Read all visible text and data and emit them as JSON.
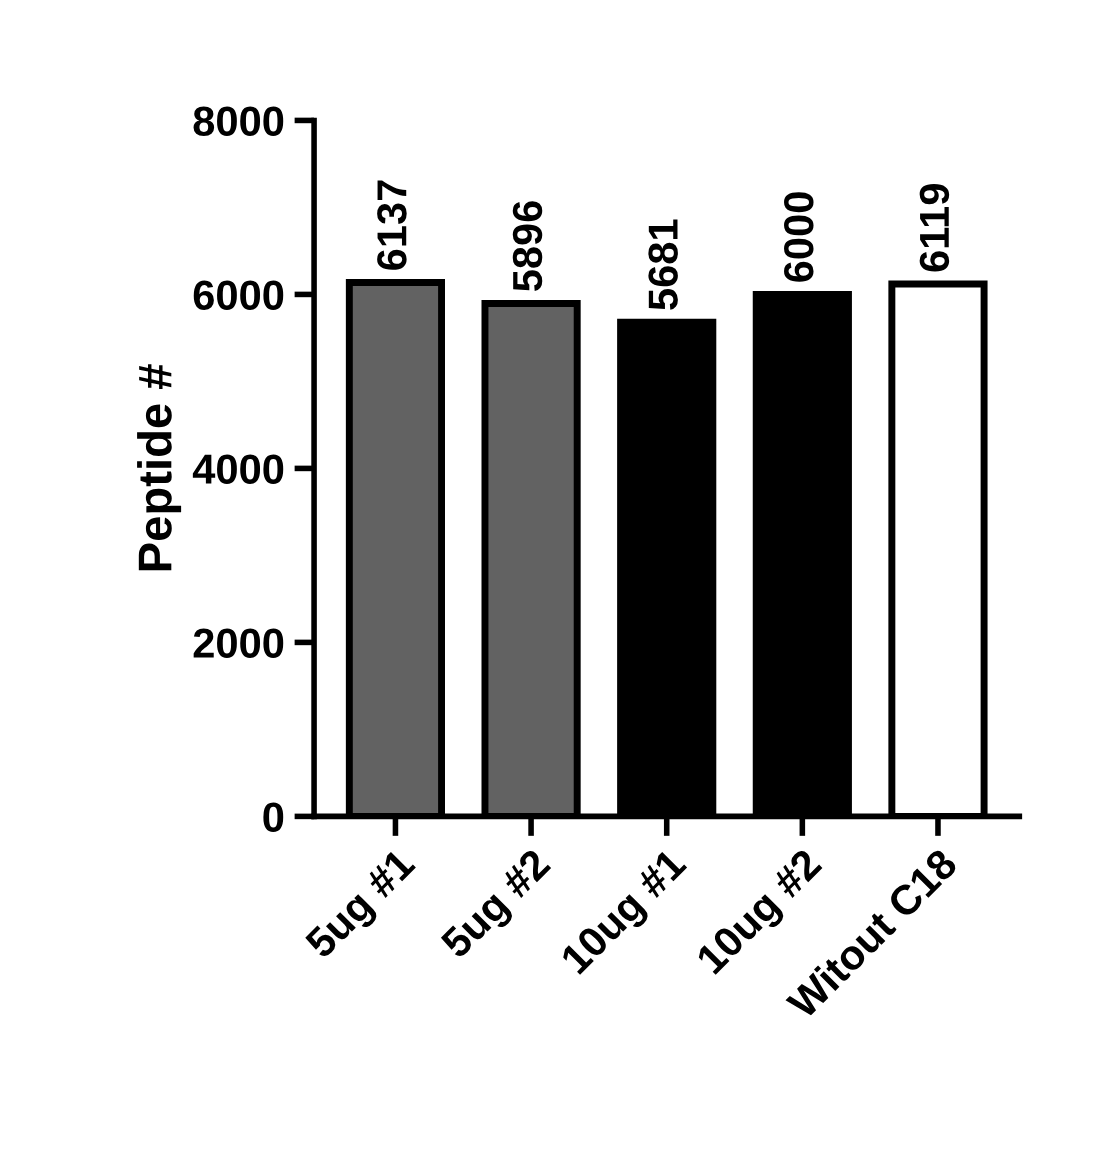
{
  "chart_data": {
    "type": "bar",
    "ylabel": "Peptide #",
    "categories": [
      "5ug #1",
      "5ug #2",
      "10ug #1",
      "10ug #2",
      "Witout C18"
    ],
    "values": [
      6137,
      5896,
      5681,
      6000,
      6119
    ],
    "colors": [
      "#626262",
      "#626262",
      "#000000",
      "#000000",
      "#ffffff"
    ],
    "ylim": [
      0,
      8000
    ],
    "yticks": [
      0,
      2000,
      4000,
      6000,
      8000
    ],
    "data_labels": true,
    "grid": false
  }
}
